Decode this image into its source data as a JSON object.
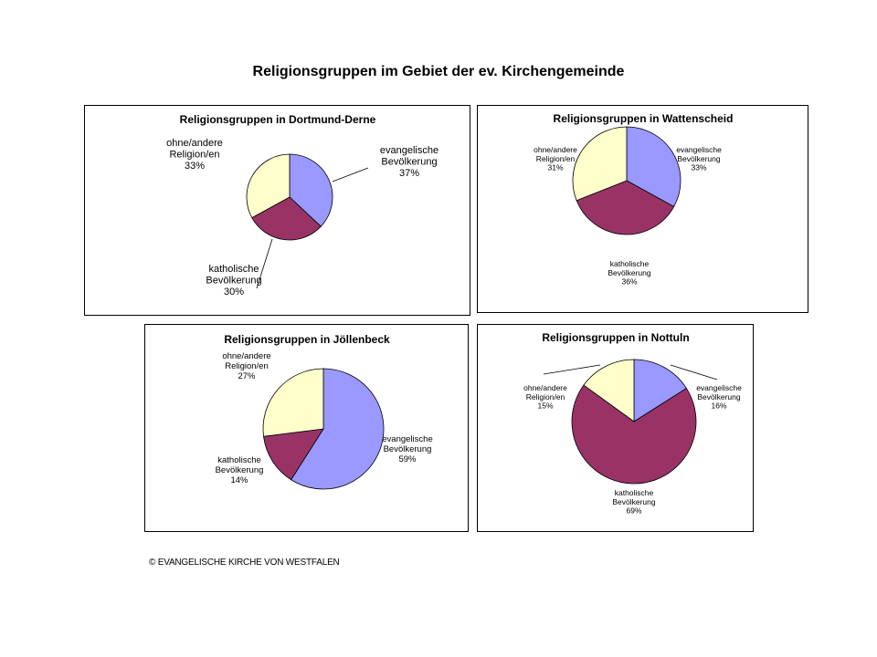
{
  "page_title": "Religionsgruppen im Gebiet der ev. Kirchengemeinde",
  "footer": "© EVANGELISCHE KIRCHE VON WESTFALEN",
  "colors": {
    "evangelisch": "#9999ff",
    "katholisch": "#993366",
    "ohne": "#ffffcc",
    "border": "#000000"
  },
  "chart_data": [
    {
      "type": "pie",
      "title": "Religionsgruppen in Dortmund-Derne",
      "slices": [
        {
          "label_lines": [
            "evangelische",
            "Bevölkerung"
          ],
          "value_text": "37%",
          "value": 37
        },
        {
          "label_lines": [
            "katholische",
            "Bevölkerung"
          ],
          "value_text": "30%",
          "value": 30
        },
        {
          "label_lines": [
            "ohne/andere",
            "Religion/en"
          ],
          "value_text": "33%",
          "value": 33
        }
      ]
    },
    {
      "type": "pie",
      "title": "Religionsgruppen in Wattenscheid",
      "slices": [
        {
          "label_lines": [
            "evangelische",
            "Bevölkerung"
          ],
          "value_text": "33%",
          "value": 33
        },
        {
          "label_lines": [
            "katholische",
            "Bevölkerung"
          ],
          "value_text": "36%",
          "value": 36
        },
        {
          "label_lines": [
            "ohne/andere",
            "Religion/en"
          ],
          "value_text": "31%",
          "value": 31
        }
      ]
    },
    {
      "type": "pie",
      "title": "Religionsgruppen in Jöllenbeck",
      "slices": [
        {
          "label_lines": [
            "evangelische",
            "Bevölkerung"
          ],
          "value_text": "59%",
          "value": 59
        },
        {
          "label_lines": [
            "katholische",
            "Bevölkerung"
          ],
          "value_text": "14%",
          "value": 14
        },
        {
          "label_lines": [
            "ohne/andere",
            "Religion/en"
          ],
          "value_text": "27%",
          "value": 27
        }
      ]
    },
    {
      "type": "pie",
      "title": "Religionsgruppen in Nottuln",
      "slices": [
        {
          "label_lines": [
            "evangelische",
            "Bevölkerung"
          ],
          "value_text": "16%",
          "value": 16
        },
        {
          "label_lines": [
            "katholische",
            "Bevölkerung"
          ],
          "value_text": "69%",
          "value": 69
        },
        {
          "label_lines": [
            "ohne/andere",
            "Religion/en"
          ],
          "value_text": "15%",
          "value": 15
        }
      ]
    }
  ]
}
